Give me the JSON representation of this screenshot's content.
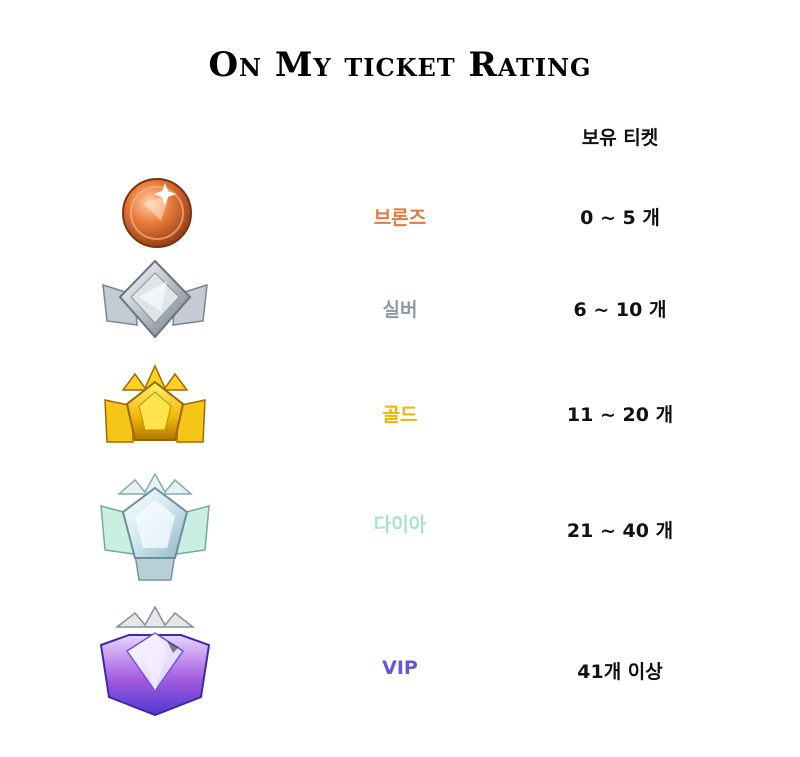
{
  "title": "On My ticket Rating",
  "column_header": "보유 티켓",
  "tiers": [
    {
      "name": "브론즈",
      "count": "0 ~ 5 개",
      "color": "#e07a45",
      "icon": "bronze-medal-icon"
    },
    {
      "name": "실버",
      "count": "6 ~ 10 개",
      "color": "#8d99a6",
      "icon": "silver-emblem-icon"
    },
    {
      "name": "골드",
      "count": "11 ~ 20 개",
      "color": "#f0b400",
      "icon": "gold-crown-emblem-icon"
    },
    {
      "name": "다이아",
      "count": "21 ~ 40 개",
      "color": "#a6e3cf",
      "icon": "diamond-crown-emblem-icon"
    },
    {
      "name": "VIP",
      "count": "41개 이상",
      "color": "#6a55d8",
      "icon": "vip-diamond-emblem-icon"
    }
  ]
}
